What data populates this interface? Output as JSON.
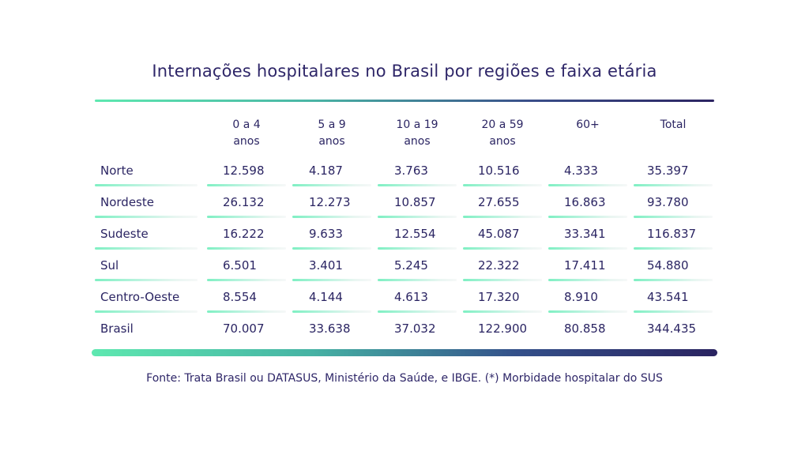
{
  "title": "Internações hospitalares no Brasil por regiões e faixa etária",
  "columns": [
    {
      "line1": "0 a 4",
      "line2": "anos"
    },
    {
      "line1": "5 a 9",
      "line2": "anos"
    },
    {
      "line1": "10 a 19",
      "line2": "anos"
    },
    {
      "line1": "20 a 59",
      "line2": "anos"
    },
    {
      "line1": "60+",
      "line2": ""
    },
    {
      "line1": "Total",
      "line2": ""
    }
  ],
  "rows": [
    {
      "label": "Norte",
      "values": [
        "12.598",
        "4.187",
        "3.763",
        "10.516",
        "4.333",
        "35.397"
      ]
    },
    {
      "label": "Nordeste",
      "values": [
        "26.132",
        "12.273",
        "10.857",
        "27.655",
        "16.863",
        "93.780"
      ]
    },
    {
      "label": "Sudeste",
      "values": [
        "16.222",
        "9.633",
        "12.554",
        "45.087",
        "33.341",
        "116.837"
      ]
    },
    {
      "label": "Sul",
      "values": [
        "6.501",
        "3.401",
        "5.245",
        "22.322",
        "17.411",
        "54.880"
      ]
    },
    {
      "label": "Centro-Oeste",
      "values": [
        "8.554",
        "4.144",
        "4.613",
        "17.320",
        "8.910",
        "43.541"
      ]
    },
    {
      "label": "Brasil",
      "values": [
        "70.007",
        "33.638",
        "37.032",
        "122.900",
        "80.858",
        "344.435"
      ]
    }
  ],
  "source": "Fonte: Trata Brasil ou DATASUS, Ministério da Saúde, e IBGE. (*) Morbidade hospitalar do SUS",
  "colors": {
    "text": "#2b2563",
    "gradient_start": "#5ee8b0",
    "gradient_end": "#2a2360"
  }
}
